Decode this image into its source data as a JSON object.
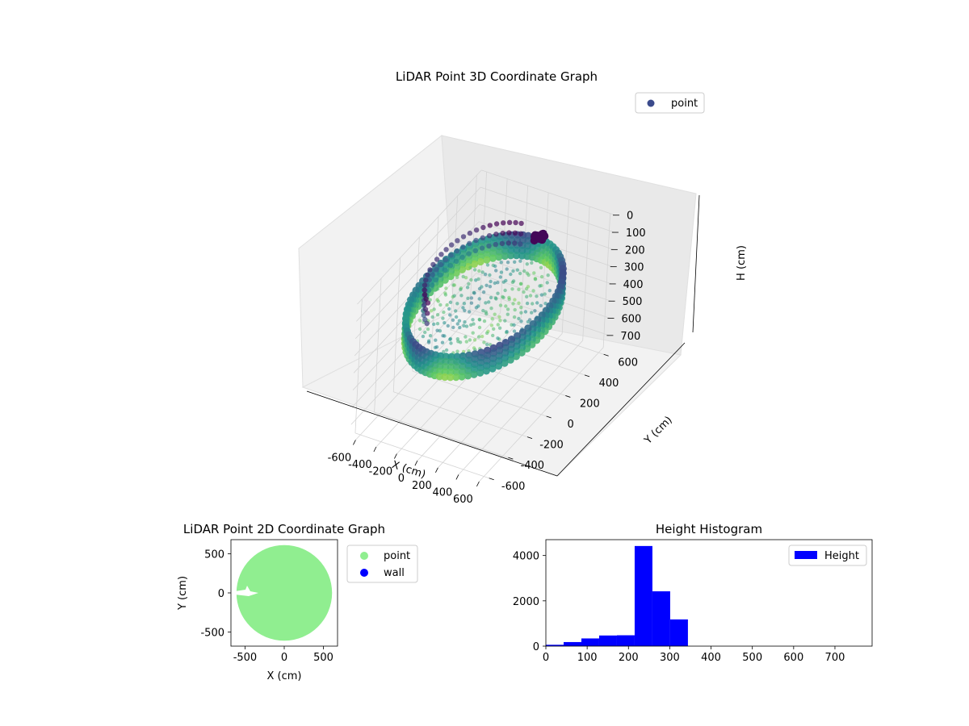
{
  "chart_data": [
    {
      "type": "scatter",
      "projection": "3d",
      "title": "LiDAR Point 3D Coordinate Graph",
      "xlabel": "X (cm)",
      "ylabel": "Y (cm)",
      "zlabel": "H (cm)",
      "xlim": [
        -650,
        650
      ],
      "ylim": [
        -650,
        650
      ],
      "zlim": [
        780,
        0
      ],
      "zaxis_inverted": true,
      "xticks": [
        -600,
        -400,
        -200,
        0,
        200,
        400,
        600
      ],
      "yticks": [
        -600,
        -400,
        -200,
        0,
        200,
        400,
        600
      ],
      "zticks": [
        0,
        100,
        200,
        300,
        400,
        500,
        600,
        700
      ],
      "colormap": "viridis",
      "grid": true,
      "legend": {
        "position": "upper-right",
        "entries": [
          {
            "label": "point",
            "color": "#3b4b8c"
          }
        ]
      },
      "series": [
        {
          "name": "point",
          "description_values": {
            "ring_radius": 560,
            "ring_height_range": [
              200,
              340
            ],
            "ring_columns": 80,
            "ring_levels": [
              210,
              240,
              270,
              300,
              330
            ],
            "floor_blob_height": 300,
            "dark_cluster_x": 80,
            "dark_cluster_y": 480,
            "dark_cluster_h": 120
          }
        }
      ]
    },
    {
      "type": "scatter",
      "title": "LiDAR Point 2D Coordinate Graph",
      "xlabel": "X (cm)",
      "ylabel": "Y (cm)",
      "xlim": [
        -680,
        680
      ],
      "ylim": [
        -680,
        680
      ],
      "xticks": [
        -500,
        0,
        500
      ],
      "yticks": [
        -500,
        0,
        500
      ],
      "grid": false,
      "legend": {
        "position": "outside-right",
        "entries": [
          {
            "label": "point",
            "color": "#90ee90"
          },
          {
            "label": "wall",
            "color": "#0000ff"
          }
        ]
      },
      "series": [
        {
          "name": "point",
          "color": "#90ee90",
          "shape": "filled-disc",
          "center": [
            0,
            0
          ],
          "radius": 610
        },
        {
          "name": "wall",
          "color": "#0000ff",
          "points": []
        }
      ]
    },
    {
      "type": "bar",
      "subtype": "histogram",
      "title": "Height Histogram",
      "xlabel": "",
      "ylabel": "",
      "xlim": [
        0,
        790
      ],
      "ylim": [
        0,
        4700
      ],
      "xticks": [
        0,
        100,
        200,
        300,
        400,
        500,
        600,
        700
      ],
      "yticks": [
        0,
        2000,
        4000
      ],
      "color": "#0000ff",
      "legend": {
        "position": "upper-right",
        "entries": [
          {
            "label": "Height",
            "color": "#0000ff"
          }
        ]
      },
      "bin_edges": [
        0,
        43,
        86,
        129,
        172,
        215,
        258,
        301,
        344,
        387,
        430,
        473,
        516,
        559,
        602,
        645,
        688,
        731,
        774
      ],
      "series": [
        {
          "name": "Height",
          "values": [
            60,
            180,
            340,
            470,
            480,
            4420,
            2420,
            1180,
            0,
            0,
            0,
            0,
            0,
            0,
            0,
            0,
            0,
            0
          ]
        }
      ]
    }
  ]
}
